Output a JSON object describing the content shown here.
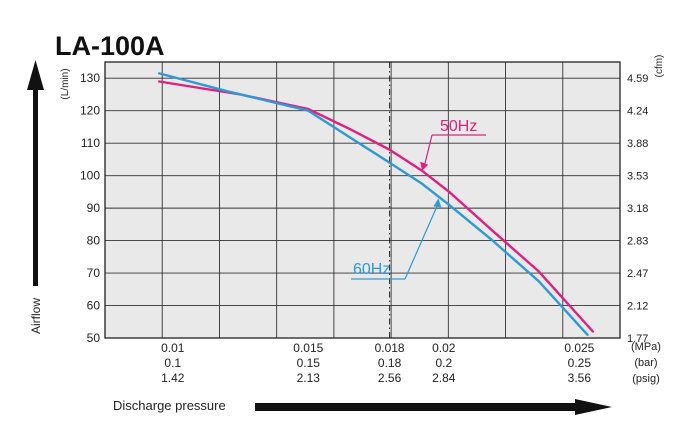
{
  "chart_data": {
    "type": "line",
    "title": "LA-100A",
    "ylabel": "(L/min)",
    "ylabel_right": "(cfm)",
    "axis_caption_y": "Airflow",
    "axis_caption_x": "Discharge pressure",
    "ylim": [
      50,
      135
    ],
    "xlim": [
      0.0075,
      0.0265
    ],
    "y_ticks": [
      {
        "value": 50,
        "label": "50"
      },
      {
        "value": 60,
        "label": "60"
      },
      {
        "value": 70,
        "label": "70"
      },
      {
        "value": 80,
        "label": "80"
      },
      {
        "value": 90,
        "label": "90"
      },
      {
        "value": 100,
        "label": "100"
      },
      {
        "value": 110,
        "label": "110"
      },
      {
        "value": 120,
        "label": "120"
      },
      {
        "value": 130,
        "label": "130"
      }
    ],
    "y_ticks_right": [
      {
        "value": 50,
        "label": "1.77"
      },
      {
        "value": 60,
        "label": "2.12"
      },
      {
        "value": 70,
        "label": "2.47"
      },
      {
        "value": 80,
        "label": "2.83"
      },
      {
        "value": 90,
        "label": "3.18"
      },
      {
        "value": 100,
        "label": "3.53"
      },
      {
        "value": 110,
        "label": "3.88"
      },
      {
        "value": 120,
        "label": "4.24"
      },
      {
        "value": 130,
        "label": "4.59"
      }
    ],
    "x_ticks": [
      {
        "value": 0.01,
        "mpa": "0.01",
        "bar": "0.1",
        "psig": "1.42"
      },
      {
        "value": 0.015,
        "mpa": "0.015",
        "bar": "0.15",
        "psig": "2.13"
      },
      {
        "value": 0.018,
        "mpa": "0.018",
        "bar": "0.18",
        "psig": "2.56"
      },
      {
        "value": 0.02,
        "mpa": "0.02",
        "bar": "0.2",
        "psig": "2.84"
      },
      {
        "value": 0.025,
        "mpa": "0.025",
        "bar": "0.25",
        "psig": "3.56"
      }
    ],
    "x_unit_labels": [
      "(MPa)",
      "(bar)",
      "(psig)"
    ],
    "reference_line_x": 0.018,
    "grid": true,
    "series": [
      {
        "name": "50Hz",
        "color": "#e0207f",
        "x": [
          0.0095,
          0.0125,
          0.015,
          0.0165,
          0.018,
          0.0192,
          0.0202,
          0.0218,
          0.0235,
          0.0255
        ],
        "y": [
          129,
          125,
          120.5,
          114.5,
          108,
          101.5,
          95,
          83,
          70.5,
          52
        ]
      },
      {
        "name": "60Hz",
        "color": "#2d9ad6",
        "x": [
          0.0095,
          0.012,
          0.015,
          0.0165,
          0.018,
          0.0192,
          0.0202,
          0.0218,
          0.0235,
          0.0253
        ],
        "y": [
          131.5,
          126,
          120,
          112,
          104,
          97.5,
          91,
          80,
          67.5,
          51
        ]
      }
    ],
    "annotations": [
      {
        "series": "50Hz",
        "text": "50Hz"
      },
      {
        "series": "60Hz",
        "text": "60Hz"
      }
    ]
  }
}
